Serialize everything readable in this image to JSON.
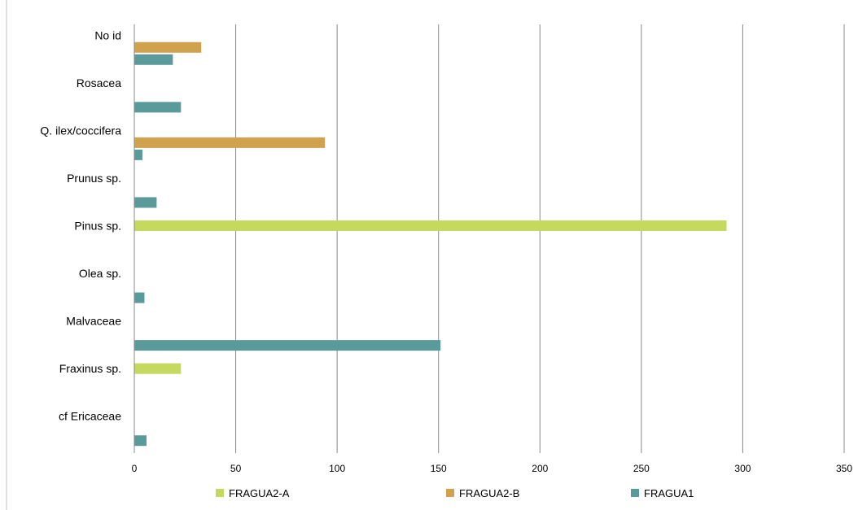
{
  "chart_data": {
    "type": "bar",
    "orientation": "horizontal",
    "categories": [
      "No id",
      "Rosacea",
      "Q. ilex/coccifera",
      "Prunus sp.",
      "Pinus sp.",
      "Olea sp.",
      "Malvaceae",
      "Fraxinus sp.",
      "cf Ericaceae"
    ],
    "series": [
      {
        "name": "FRAGUA2-A",
        "color": "#c5d95e",
        "values": [
          0,
          0,
          0,
          0,
          292,
          0,
          0,
          23,
          0
        ]
      },
      {
        "name": "FRAGUA2-B",
        "color": "#d1a24d",
        "values": [
          33,
          0,
          94,
          0,
          0,
          0,
          0,
          0,
          0
        ]
      },
      {
        "name": "FRAGUA1",
        "color": "#5a9a9a",
        "values": [
          19,
          23,
          4,
          11,
          0,
          5,
          151,
          0,
          6
        ]
      }
    ],
    "xlim": [
      0,
      350
    ],
    "xticks": [
      0,
      50,
      100,
      150,
      200,
      250,
      300,
      350
    ],
    "grid": true,
    "legend_position": "bottom"
  }
}
